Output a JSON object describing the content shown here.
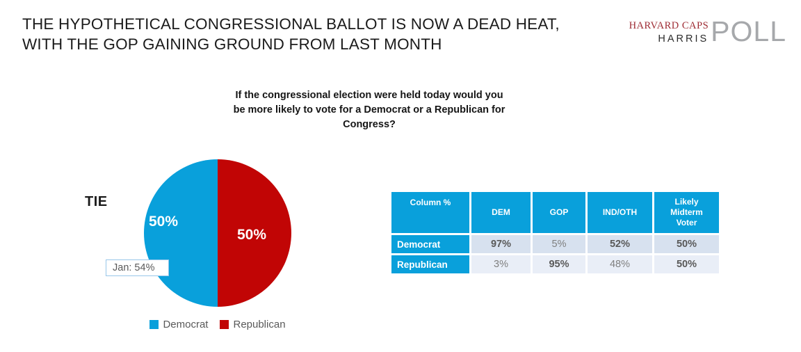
{
  "slide": {
    "title_line1": "THE HYPOTHETICAL CONGRESSIONAL BALLOT IS NOW A DEAD HEAT,",
    "title_line2": "WITH THE GOP GAINING GROUND FROM LAST MONTH"
  },
  "logo": {
    "caps": "HARVARD CAPS",
    "harris": "HARRIS",
    "poll": "POLL"
  },
  "question": "If the congressional election were held today would you be more likely to vote for a Democrat or a Republican for Congress?",
  "colors": {
    "democrat_blue": "#09A0DB",
    "republican_red": "#C10505",
    "row_shade_1": "#D7E1EF",
    "row_shade_2": "#E9EEF7",
    "harvard_crimson": "#9E2B33",
    "poll_gray": "#A6A8AB",
    "callout_border": "#98C6E9"
  },
  "chart_data": [
    {
      "type": "pie",
      "title": "If the congressional election were held today would you be more likely to vote for a Democrat or a Republican for Congress?",
      "annotation": "TIE",
      "callout": "Jan: 54%",
      "legend_position": "bottom",
      "slices": [
        {
          "label": "Democrat",
          "value": 50,
          "value_label": "50%",
          "color": "#09A0DB"
        },
        {
          "label": "Republican",
          "value": 50,
          "value_label": "50%",
          "color": "#C10505"
        }
      ]
    },
    {
      "type": "table",
      "headers": [
        "Column %",
        "DEM",
        "GOP",
        "IND/OTH",
        "Likely Midterm Voter"
      ],
      "rows": [
        {
          "label": "Democrat",
          "values": [
            "97%",
            "5%",
            "52%",
            "50%"
          ]
        },
        {
          "label": "Republican",
          "values": [
            "3%",
            "95%",
            "48%",
            "50%"
          ]
        }
      ]
    }
  ]
}
